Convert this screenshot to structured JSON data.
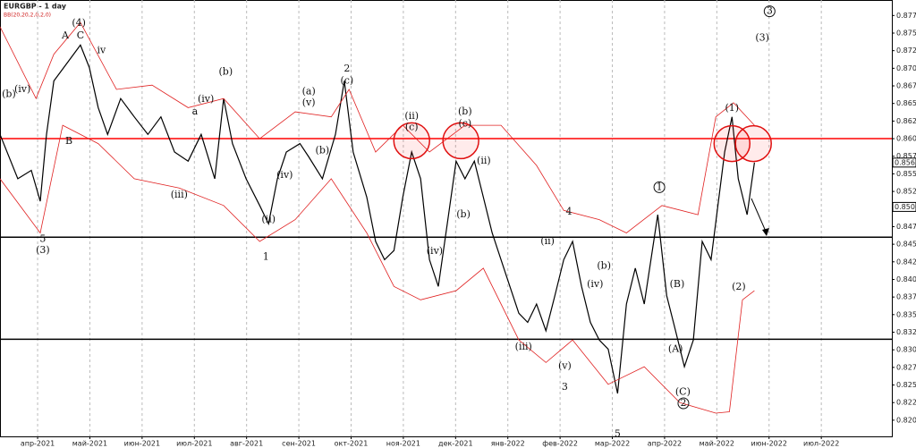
{
  "chart_data": {
    "type": "line",
    "title": "EURGBP - 1 day",
    "indicator_label": "BB(20,20,2,0,2,0)",
    "xlim": [
      -0.72,
      16.35
    ],
    "xticks": [
      {
        "value": 0,
        "label": "апр-2021"
      },
      {
        "value": 1,
        "label": "май-2021"
      },
      {
        "value": 2,
        "label": "июн-2021"
      },
      {
        "value": 3,
        "label": "июл-2021"
      },
      {
        "value": 4,
        "label": "авг-2021"
      },
      {
        "value": 5,
        "label": "сен-2021"
      },
      {
        "value": 6,
        "label": "окт-2021"
      },
      {
        "value": 7,
        "label": "ноя-2021"
      },
      {
        "value": 8,
        "label": "дек-2021"
      },
      {
        "value": 9,
        "label": "янв-2022"
      },
      {
        "value": 10,
        "label": "фев-2022"
      },
      {
        "value": 11,
        "label": "мар-2022"
      },
      {
        "value": 12,
        "label": "апр-2022"
      },
      {
        "value": 13,
        "label": "май-2022"
      },
      {
        "value": 14,
        "label": "июн-2022"
      },
      {
        "value": 15,
        "label": "июл-2022"
      }
    ],
    "ylim": [
      0.8177,
      0.8797
    ],
    "yticks": [
      {
        "value": 0.82,
        "label": "0.8200"
      },
      0.8225,
      {
        "value": 0.825,
        "label": "0.8250"
      },
      0.8275,
      {
        "value": 0.83,
        "label": "0.8300"
      },
      0.8325,
      {
        "value": 0.835,
        "label": "0.8350"
      },
      0.8375,
      {
        "value": 0.84,
        "label": "0.8400"
      },
      0.8425,
      {
        "value": 0.845,
        "label": "0.8450"
      },
      0.8475,
      {
        "value": 0.85,
        "label": "0.8500"
      },
      0.8525,
      {
        "value": 0.855,
        "label": "0.8550"
      },
      0.8575,
      {
        "value": 0.86,
        "label": "0.8600"
      },
      0.8625,
      {
        "value": 0.865,
        "label": "0.8650"
      },
      0.8675,
      {
        "value": 0.87,
        "label": "0.8700"
      },
      0.8725,
      {
        "value": 0.875,
        "label": "0.8750"
      },
      0.8775
    ],
    "grid": true,
    "price_labels": [
      0.8566,
      0.8503
    ],
    "series": [
      {
        "color": "#000000",
        "x": [
          -0.72,
          -0.38,
          -0.12,
          0.05,
          0.17,
          0.31,
          0.57,
          0.82,
          0.99,
          1.16,
          1.34,
          1.59,
          1.85,
          2.11,
          2.36,
          2.62,
          2.88,
          3.13,
          3.39,
          3.56,
          3.73,
          3.99,
          4.25,
          4.42,
          4.59,
          4.76,
          5.02,
          5.19,
          5.45,
          5.7,
          5.87,
          6.04,
          6.3,
          6.47,
          6.64,
          6.82,
          6.99,
          7.16,
          7.33,
          7.5,
          7.67,
          7.84,
          8.01,
          8.18,
          8.36,
          8.53,
          8.7,
          8.87,
          9.04,
          9.21,
          9.38,
          9.55,
          9.73,
          9.9,
          10.07,
          10.24,
          10.41,
          10.58,
          10.75,
          10.92,
          11.1,
          11.27,
          11.44,
          11.61,
          11.87,
          12.04,
          12.21,
          12.38,
          12.55,
          12.72,
          12.89,
          13.15,
          13.29,
          13.41,
          13.58,
          13.72
        ],
        "values": [
          0.8606,
          0.8543,
          0.8555,
          0.8511,
          0.8606,
          0.8682,
          0.8708,
          0.8733,
          0.8701,
          0.8644,
          0.8606,
          0.8657,
          0.8631,
          0.8606,
          0.8631,
          0.8581,
          0.8568,
          0.8606,
          0.8543,
          0.8657,
          0.8593,
          0.8543,
          0.8505,
          0.8479,
          0.8543,
          0.8581,
          0.8593,
          0.8574,
          0.8543,
          0.8606,
          0.8682,
          0.8581,
          0.8517,
          0.8454,
          0.8428,
          0.8441,
          0.8517,
          0.8581,
          0.8543,
          0.8428,
          0.839,
          0.8479,
          0.8568,
          0.8543,
          0.8568,
          0.8517,
          0.8466,
          0.8428,
          0.839,
          0.8352,
          0.8339,
          0.8365,
          0.8327,
          0.8377,
          0.8428,
          0.8454,
          0.839,
          0.8339,
          0.8314,
          0.8301,
          0.8238,
          0.8365,
          0.8416,
          0.8365,
          0.8492,
          0.8377,
          0.8327,
          0.8276,
          0.8314,
          0.8454,
          0.8428,
          0.8581,
          0.8631,
          0.8543,
          0.8492,
          0.8566
        ]
      },
      {
        "color": "#e02020",
        "x": [
          -0.72,
          -0.03,
          0.31,
          0.82,
          1.51,
          2.19,
          2.88,
          3.56,
          4.25,
          4.93,
          5.62,
          5.96,
          6.47,
          6.99,
          7.5,
          8.18,
          8.87,
          9.55,
          10.07,
          10.75,
          11.27,
          11.95,
          12.64,
          12.98,
          13.32,
          13.72
        ],
        "values": [
          0.8759,
          0.8657,
          0.872,
          0.8765,
          0.867,
          0.8676,
          0.8644,
          0.8657,
          0.86,
          0.8638,
          0.8631,
          0.867,
          0.8581,
          0.8619,
          0.8581,
          0.8619,
          0.8619,
          0.8562,
          0.8498,
          0.8485,
          0.8466,
          0.8505,
          0.8492,
          0.8631,
          0.8651,
          0.8619
        ]
      },
      {
        "color": "#e02020",
        "x": [
          -0.72,
          0.05,
          0.48,
          1.16,
          1.85,
          2.71,
          3.56,
          4.25,
          4.93,
          5.62,
          6.3,
          6.82,
          7.33,
          8.01,
          8.53,
          9.21,
          9.73,
          10.24,
          10.92,
          11.61,
          12.29,
          12.98,
          13.24,
          13.49,
          13.72
        ],
        "values": [
          0.8543,
          0.8466,
          0.8619,
          0.8593,
          0.8543,
          0.853,
          0.8505,
          0.8454,
          0.8485,
          0.8543,
          0.8466,
          0.839,
          0.8371,
          0.8384,
          0.8416,
          0.8314,
          0.8282,
          0.8314,
          0.8251,
          0.8276,
          0.8225,
          0.821,
          0.8212,
          0.8371,
          0.8384
        ]
      }
    ],
    "levels": [
      {
        "value": 0.86,
        "color": "#ff0000"
      },
      {
        "value": 0.846,
        "color": "#000000"
      },
      {
        "value": 0.8315,
        "color": "#000000"
      }
    ],
    "highlights": [
      {
        "x": 7.16,
        "y": 0.8597
      },
      {
        "x": 8.1,
        "y": 0.8597
      },
      {
        "x": 13.29,
        "y": 0.8593
      },
      {
        "x": 13.7,
        "y": 0.8593
      }
    ],
    "annotations": [
      {
        "text": "(4)",
        "x": 0.79,
        "y": 0.8764
      },
      {
        "text": "A",
        "x": 0.53,
        "y": 0.8746
      },
      {
        "text": "C",
        "x": 0.82,
        "y": 0.8746
      },
      {
        "text": "B",
        "x": 0.6,
        "y": 0.8596
      },
      {
        "text": "(b)",
        "x": -0.55,
        "y": 0.8663
      },
      {
        "text": "(iv)",
        "x": -0.29,
        "y": 0.867
      },
      {
        "text": "5",
        "x": 0.1,
        "y": 0.8457
      },
      {
        "text": "(3)",
        "x": 0.1,
        "y": 0.8441
      },
      {
        "text": "iv",
        "x": 1.22,
        "y": 0.8725
      },
      {
        "text": "(iv)",
        "x": 3.22,
        "y": 0.8656
      },
      {
        "text": "(b)",
        "x": 3.6,
        "y": 0.8695
      },
      {
        "text": "a",
        "x": 3.01,
        "y": 0.8638
      },
      {
        "text": "(iii)",
        "x": 2.71,
        "y": 0.852
      },
      {
        "text": "1",
        "x": 4.37,
        "y": 0.8432
      },
      {
        "text": "(ii)",
        "x": 4.42,
        "y": 0.8485
      },
      {
        "text": "(iv)",
        "x": 4.73,
        "y": 0.8548
      },
      {
        "text": "(a)",
        "x": 5.19,
        "y": 0.8667
      },
      {
        "text": "(v)",
        "x": 5.19,
        "y": 0.8651
      },
      {
        "text": "2",
        "x": 5.92,
        "y": 0.8699
      },
      {
        "text": "(c)",
        "x": 5.92,
        "y": 0.8682
      },
      {
        "text": "(b)",
        "x": 5.45,
        "y": 0.8583
      },
      {
        "text": "(ii)",
        "x": 7.16,
        "y": 0.8632
      },
      {
        "text": "(c)",
        "x": 7.16,
        "y": 0.8616
      },
      {
        "text": "(b)",
        "x": 8.18,
        "y": 0.8638
      },
      {
        "text": "(c)",
        "x": 8.18,
        "y": 0.8621
      },
      {
        "text": "(b)",
        "x": 8.15,
        "y": 0.8492
      },
      {
        "text": "(ii)",
        "x": 8.54,
        "y": 0.8568
      },
      {
        "text": "(iv)",
        "x": 7.6,
        "y": 0.844
      },
      {
        "text": "(ii)",
        "x": 9.76,
        "y": 0.8454
      },
      {
        "text": "4",
        "x": 10.17,
        "y": 0.8496
      },
      {
        "text": "3",
        "x": 10.09,
        "y": 0.8247
      },
      {
        "text": "(v)",
        "x": 10.09,
        "y": 0.8277
      },
      {
        "text": "(iii)",
        "x": 9.3,
        "y": 0.8304
      },
      {
        "text": "5",
        "x": 11.1,
        "y": 0.818
      },
      {
        "text": "(b)",
        "x": 10.84,
        "y": 0.8419
      },
      {
        "text": "(iv)",
        "x": 10.67,
        "y": 0.8393
      },
      {
        "text": "1",
        "x": 11.9,
        "y": 0.8531,
        "circled": true
      },
      {
        "text": "(B)",
        "x": 12.24,
        "y": 0.8393
      },
      {
        "text": "(A)",
        "x": 12.21,
        "y": 0.8301
      },
      {
        "text": "(C)",
        "x": 12.35,
        "y": 0.824
      },
      {
        "text": "2",
        "x": 12.36,
        "y": 0.8224,
        "circled": true
      },
      {
        "text": "(1)",
        "x": 13.29,
        "y": 0.8643
      },
      {
        "text": "(2)",
        "x": 13.42,
        "y": 0.8389
      },
      {
        "text": "(3)",
        "x": 13.87,
        "y": 0.8743
      },
      {
        "text": "3",
        "x": 14.01,
        "y": 0.8781,
        "circled": true
      }
    ]
  }
}
